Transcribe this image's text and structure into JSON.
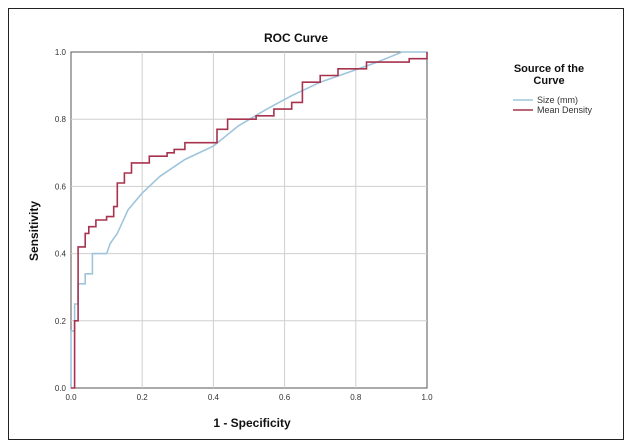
{
  "chart_data": {
    "type": "line",
    "title": "ROC Curve",
    "xlabel": "1 - Specificity",
    "ylabel": "Sensitivity",
    "xlim": [
      0,
      1
    ],
    "ylim": [
      0,
      1
    ],
    "xticks": [
      "0.0",
      "0.2",
      "0.4",
      "0.6",
      "0.8",
      "1.0"
    ],
    "yticks": [
      "0.0",
      "0.2",
      "0.4",
      "0.6",
      "0.8",
      "1.0"
    ],
    "grid": true,
    "legend": {
      "title_line1": "Source of the",
      "title_line2": "Curve",
      "placement": "right"
    },
    "series": [
      {
        "name": "Size (mm)",
        "color": "#9ec5dc",
        "points": [
          [
            0,
            0
          ],
          [
            0,
            0.17
          ],
          [
            0.01,
            0.17
          ],
          [
            0.01,
            0.25
          ],
          [
            0.02,
            0.25
          ],
          [
            0.02,
            0.31
          ],
          [
            0.04,
            0.31
          ],
          [
            0.04,
            0.34
          ],
          [
            0.06,
            0.34
          ],
          [
            0.06,
            0.4
          ],
          [
            0.1,
            0.4
          ],
          [
            0.11,
            0.43
          ],
          [
            0.13,
            0.46
          ],
          [
            0.16,
            0.53
          ],
          [
            0.2,
            0.58
          ],
          [
            0.25,
            0.63
          ],
          [
            0.32,
            0.68
          ],
          [
            0.4,
            0.72
          ],
          [
            0.47,
            0.78
          ],
          [
            0.55,
            0.83
          ],
          [
            0.62,
            0.87
          ],
          [
            0.7,
            0.91
          ],
          [
            0.78,
            0.94
          ],
          [
            0.86,
            0.97
          ],
          [
            0.93,
            1.0
          ],
          [
            1.0,
            1.0
          ]
        ]
      },
      {
        "name": "Mean Density",
        "color": "#a7334f",
        "points": [
          [
            0,
            0
          ],
          [
            0.01,
            0
          ],
          [
            0.01,
            0.2
          ],
          [
            0.02,
            0.2
          ],
          [
            0.02,
            0.42
          ],
          [
            0.04,
            0.42
          ],
          [
            0.04,
            0.46
          ],
          [
            0.05,
            0.46
          ],
          [
            0.05,
            0.48
          ],
          [
            0.07,
            0.48
          ],
          [
            0.07,
            0.5
          ],
          [
            0.1,
            0.5
          ],
          [
            0.1,
            0.51
          ],
          [
            0.12,
            0.51
          ],
          [
            0.12,
            0.54
          ],
          [
            0.13,
            0.54
          ],
          [
            0.13,
            0.61
          ],
          [
            0.15,
            0.61
          ],
          [
            0.15,
            0.64
          ],
          [
            0.17,
            0.64
          ],
          [
            0.17,
            0.67
          ],
          [
            0.22,
            0.67
          ],
          [
            0.22,
            0.69
          ],
          [
            0.27,
            0.69
          ],
          [
            0.27,
            0.7
          ],
          [
            0.29,
            0.7
          ],
          [
            0.29,
            0.71
          ],
          [
            0.32,
            0.71
          ],
          [
            0.32,
            0.73
          ],
          [
            0.41,
            0.73
          ],
          [
            0.41,
            0.77
          ],
          [
            0.44,
            0.77
          ],
          [
            0.44,
            0.8
          ],
          [
            0.52,
            0.8
          ],
          [
            0.52,
            0.81
          ],
          [
            0.57,
            0.81
          ],
          [
            0.57,
            0.83
          ],
          [
            0.62,
            0.83
          ],
          [
            0.62,
            0.85
          ],
          [
            0.65,
            0.85
          ],
          [
            0.65,
            0.91
          ],
          [
            0.7,
            0.91
          ],
          [
            0.7,
            0.93
          ],
          [
            0.75,
            0.93
          ],
          [
            0.75,
            0.95
          ],
          [
            0.83,
            0.95
          ],
          [
            0.83,
            0.97
          ],
          [
            0.95,
            0.97
          ],
          [
            0.95,
            0.98
          ],
          [
            1.0,
            0.98
          ],
          [
            1.0,
            1.0
          ]
        ]
      }
    ]
  }
}
